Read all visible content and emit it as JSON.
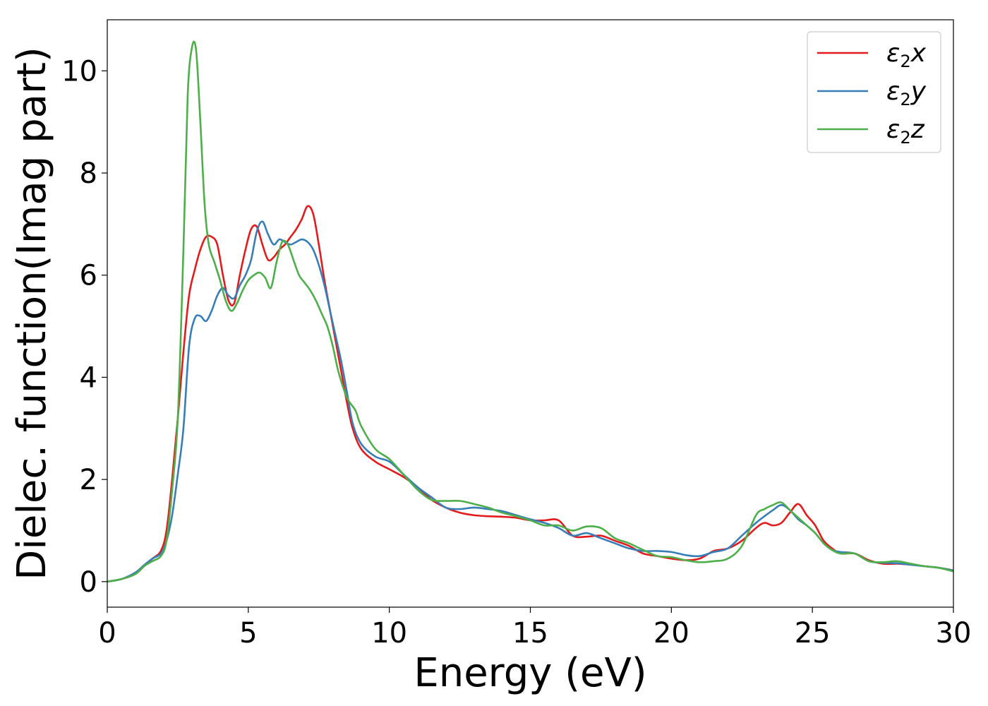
{
  "chart_data": {
    "type": "line",
    "title": "",
    "xlabel": "Energy (eV)",
    "ylabel": "Dielec. function(Imag part)",
    "xlim": [
      0,
      30
    ],
    "ylim": [
      -0.5,
      11
    ],
    "xticks": [
      0,
      5,
      10,
      15,
      20,
      25,
      30
    ],
    "yticks": [
      0,
      2,
      4,
      6,
      8,
      10
    ],
    "grid": false,
    "legend_position": "top-right",
    "series": [
      {
        "name": "ε2x",
        "label_base": "ε",
        "label_sub": "2",
        "label_axis": "x",
        "color": "#e41a1c",
        "x": [
          0,
          0.5,
          1.0,
          1.3,
          1.6,
          1.9,
          2.1,
          2.3,
          2.5,
          2.7,
          2.9,
          3.1,
          3.3,
          3.5,
          3.7,
          3.9,
          4.1,
          4.3,
          4.5,
          4.7,
          4.9,
          5.1,
          5.3,
          5.5,
          5.7,
          5.9,
          6.1,
          6.3,
          6.5,
          6.7,
          6.9,
          7.1,
          7.3,
          7.5,
          7.7,
          7.9,
          8.1,
          8.3,
          8.5,
          8.7,
          9.0,
          9.5,
          10.0,
          10.5,
          11.0,
          11.5,
          12.0,
          12.5,
          13.0,
          13.5,
          14.0,
          14.5,
          15.0,
          15.5,
          16.0,
          16.5,
          17.0,
          17.5,
          18.0,
          18.5,
          19.0,
          19.5,
          20.0,
          20.5,
          21.0,
          21.5,
          22.0,
          22.5,
          23.0,
          23.3,
          23.6,
          23.9,
          24.2,
          24.5,
          24.8,
          25.1,
          25.4,
          25.7,
          26.0,
          26.5,
          27.0,
          27.5,
          28.0,
          28.5,
          29.0,
          29.5,
          30.0
        ],
        "y": [
          0,
          0.05,
          0.15,
          0.3,
          0.45,
          0.6,
          1.0,
          2.0,
          3.2,
          4.5,
          5.6,
          6.1,
          6.5,
          6.75,
          6.75,
          6.6,
          6.0,
          5.5,
          5.45,
          6.0,
          6.5,
          6.9,
          6.95,
          6.6,
          6.3,
          6.35,
          6.5,
          6.6,
          6.75,
          6.9,
          7.1,
          7.35,
          7.2,
          6.6,
          5.9,
          5.3,
          4.7,
          4.1,
          3.5,
          3.0,
          2.6,
          2.35,
          2.2,
          2.05,
          1.85,
          1.6,
          1.45,
          1.35,
          1.3,
          1.28,
          1.27,
          1.25,
          1.2,
          1.2,
          1.2,
          0.9,
          0.88,
          0.9,
          0.8,
          0.7,
          0.55,
          0.5,
          0.45,
          0.42,
          0.45,
          0.6,
          0.65,
          0.8,
          1.05,
          1.15,
          1.1,
          1.15,
          1.35,
          1.52,
          1.3,
          1.1,
          0.8,
          0.65,
          0.55,
          0.55,
          0.42,
          0.35,
          0.35,
          0.33,
          0.3,
          0.27,
          0.22
        ]
      },
      {
        "name": "ε2y",
        "label_base": "ε",
        "label_sub": "2",
        "label_axis": "y",
        "color": "#377eb8",
        "x": [
          0,
          0.5,
          1.0,
          1.3,
          1.6,
          1.9,
          2.1,
          2.3,
          2.5,
          2.7,
          2.9,
          3.1,
          3.3,
          3.5,
          3.7,
          3.9,
          4.1,
          4.3,
          4.5,
          4.7,
          4.9,
          5.1,
          5.3,
          5.5,
          5.7,
          5.9,
          6.1,
          6.3,
          6.5,
          6.7,
          6.9,
          7.1,
          7.3,
          7.5,
          7.7,
          7.9,
          8.1,
          8.3,
          8.5,
          8.7,
          9.0,
          9.5,
          10.0,
          10.5,
          11.0,
          11.5,
          12.0,
          12.5,
          13.0,
          13.5,
          14.0,
          14.5,
          15.0,
          15.5,
          16.0,
          16.5,
          17.0,
          17.5,
          18.0,
          18.5,
          19.0,
          19.5,
          20.0,
          20.5,
          21.0,
          21.5,
          22.0,
          22.5,
          23.0,
          23.3,
          23.6,
          23.9,
          24.2,
          24.5,
          24.8,
          25.1,
          25.4,
          25.7,
          26.0,
          26.5,
          27.0,
          27.5,
          28.0,
          28.5,
          29.0,
          29.5,
          30.0
        ],
        "y": [
          0,
          0.05,
          0.18,
          0.32,
          0.45,
          0.55,
          0.8,
          1.3,
          2.1,
          3.0,
          4.6,
          5.15,
          5.2,
          5.1,
          5.3,
          5.6,
          5.75,
          5.6,
          5.55,
          5.8,
          6.0,
          6.3,
          6.85,
          7.05,
          6.8,
          6.6,
          6.7,
          6.65,
          6.6,
          6.65,
          6.7,
          6.65,
          6.5,
          6.2,
          5.8,
          5.3,
          4.8,
          4.3,
          3.7,
          3.1,
          2.7,
          2.45,
          2.35,
          2.1,
          1.85,
          1.65,
          1.45,
          1.42,
          1.45,
          1.42,
          1.38,
          1.3,
          1.22,
          1.15,
          1.05,
          0.9,
          0.95,
          0.85,
          0.75,
          0.65,
          0.6,
          0.6,
          0.58,
          0.52,
          0.5,
          0.58,
          0.65,
          0.9,
          1.15,
          1.28,
          1.4,
          1.5,
          1.4,
          1.22,
          1.1,
          0.95,
          0.75,
          0.62,
          0.58,
          0.55,
          0.4,
          0.37,
          0.36,
          0.33,
          0.3,
          0.27,
          0.22
        ]
      },
      {
        "name": "ε2z",
        "label_base": "ε",
        "label_sub": "2",
        "label_axis": "z",
        "color": "#4daf4a",
        "x": [
          0,
          0.5,
          1.0,
          1.3,
          1.6,
          1.9,
          2.1,
          2.3,
          2.5,
          2.7,
          2.85,
          3.0,
          3.15,
          3.3,
          3.45,
          3.6,
          3.8,
          4.0,
          4.2,
          4.4,
          4.6,
          4.8,
          5.0,
          5.2,
          5.4,
          5.6,
          5.8,
          6.0,
          6.2,
          6.4,
          6.6,
          6.8,
          7.0,
          7.2,
          7.4,
          7.6,
          7.8,
          8.0,
          8.2,
          8.5,
          8.8,
          9.0,
          9.5,
          10.0,
          10.5,
          11.0,
          11.5,
          12.0,
          12.5,
          13.0,
          13.5,
          14.0,
          14.5,
          15.0,
          15.5,
          16.0,
          16.5,
          17.0,
          17.5,
          18.0,
          18.5,
          19.0,
          19.5,
          20.0,
          20.5,
          21.0,
          21.5,
          22.0,
          22.5,
          23.0,
          23.3,
          23.6,
          23.9,
          24.2,
          24.5,
          24.8,
          25.1,
          25.4,
          25.7,
          26.0,
          26.5,
          27.0,
          27.5,
          28.0,
          28.5,
          29.0,
          29.5,
          30.0
        ],
        "y": [
          0,
          0.05,
          0.15,
          0.3,
          0.4,
          0.5,
          0.8,
          1.8,
          3.2,
          6.5,
          9.5,
          10.45,
          10.4,
          9.0,
          7.4,
          6.6,
          6.25,
          5.9,
          5.5,
          5.3,
          5.45,
          5.7,
          5.9,
          6.0,
          6.05,
          5.95,
          5.75,
          6.25,
          6.65,
          6.6,
          6.3,
          6.0,
          5.85,
          5.7,
          5.5,
          5.25,
          5.0,
          4.6,
          4.1,
          3.6,
          3.35,
          3.05,
          2.6,
          2.4,
          2.1,
          1.8,
          1.6,
          1.58,
          1.58,
          1.52,
          1.45,
          1.35,
          1.28,
          1.2,
          1.1,
          1.1,
          1.0,
          1.08,
          1.05,
          0.85,
          0.75,
          0.62,
          0.5,
          0.48,
          0.42,
          0.38,
          0.4,
          0.45,
          0.7,
          1.3,
          1.42,
          1.5,
          1.55,
          1.4,
          1.25,
          1.1,
          0.95,
          0.75,
          0.62,
          0.55,
          0.55,
          0.4,
          0.38,
          0.4,
          0.35,
          0.3,
          0.27,
          0.2
        ]
      }
    ]
  }
}
